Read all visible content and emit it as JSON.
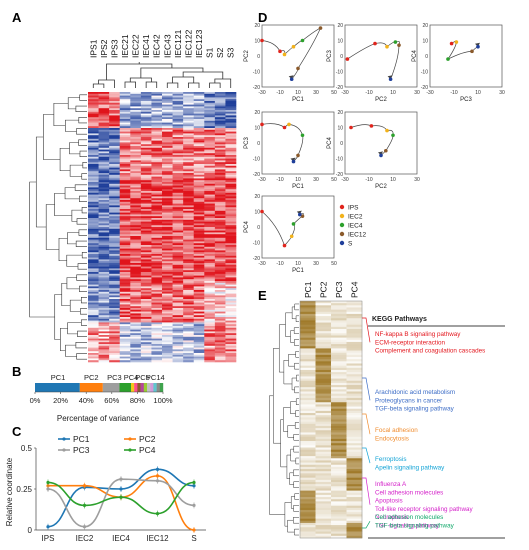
{
  "panel_letters": {
    "a": "A",
    "b": "B",
    "c": "C",
    "d": "D",
    "e": "E"
  },
  "colors": {
    "heat_low": "#1f3f9a",
    "heat_mid": "#ffffff",
    "heat_high": "#e0141c",
    "pc1": "#1f77b4",
    "pc2": "#ff7f0e",
    "pc3": "#9e9e9e",
    "pc4": "#2ca02c",
    "brown": "#a07a2a",
    "kegg_red": "#e3171e",
    "kegg_blue": "#3c6cc6",
    "kegg_orange": "#f08c2e",
    "kegg_cyan": "#12a3d6",
    "kegg_magenta": "#d421c9",
    "kegg_green": "#12a86a"
  },
  "panel_a": {
    "columns": [
      "IPS1",
      "IPS2",
      "IPS3",
      "IEC21",
      "IEC22",
      "IEC41",
      "IEC42",
      "IEC43",
      "IEC121",
      "IEC122",
      "IEC123",
      "S1",
      "S2",
      "S3"
    ]
  },
  "panel_b": {
    "chart_data": {
      "type": "bar",
      "orientation": "horizontal-stacked",
      "categories": [
        "PC1",
        "PC2",
        "PC3",
        "PC4",
        "PC5-PC14"
      ],
      "values": [
        35,
        18,
        13,
        9,
        25
      ],
      "segment_labels": [
        "PC1",
        "PC2",
        "PC3",
        "PC4",
        "PC5",
        "PC14"
      ],
      "ticks": [
        "0%",
        "20%",
        "40%",
        "60%",
        "80%",
        "100%"
      ],
      "xlabel": "Percentage of variance",
      "xlim": [
        0,
        100
      ],
      "tail_colors": [
        "#f4c71d",
        "#ff4f8b",
        "#8e5a2f",
        "#b6469a",
        "#9acd32",
        "#c2c2c2",
        "#d29ad8",
        "#5fc6cf",
        "#8a8a8a",
        "#3fa34d"
      ]
    }
  },
  "panel_c": {
    "chart_data": {
      "type": "line",
      "categories": [
        "IPS",
        "IEC2",
        "IEC4",
        "IEC12",
        "S"
      ],
      "ylabel": "Relative coordinate",
      "ylim": [
        0,
        0.5
      ],
      "yticks": [
        "0",
        "0.25",
        "0.5"
      ],
      "series": [
        {
          "name": "PC1",
          "values": [
            0.02,
            0.26,
            0.25,
            0.37,
            0.27
          ]
        },
        {
          "name": "PC2",
          "values": [
            0.27,
            0.27,
            0.2,
            0.33,
            0.0
          ]
        },
        {
          "name": "PC3",
          "values": [
            0.25,
            0.02,
            0.31,
            0.3,
            0.15
          ]
        },
        {
          "name": "PC4",
          "values": [
            0.29,
            0.15,
            0.2,
            0.1,
            0.29
          ]
        }
      ]
    }
  },
  "panel_d": {
    "legend": [
      "IPS",
      "IEC2",
      "IEC4",
      "IEC12",
      "S"
    ],
    "legend_colors": [
      "#e0241c",
      "#f2b21b",
      "#2ca02c",
      "#8b5a2b",
      "#1f3f9a"
    ],
    "plots": [
      {
        "xlabel": "PC1",
        "ylabel": "PC2",
        "x_ticks": [
          "-30",
          "-10",
          "10",
          "30",
          "50"
        ],
        "y_ticks": [
          "20",
          "10",
          "0",
          "-10",
          "-20"
        ],
        "points": [
          [
            -30,
            10
          ],
          [
            -10,
            3
          ],
          [
            -5,
            1
          ],
          [
            5,
            6
          ],
          [
            15,
            10
          ],
          [
            35,
            18
          ],
          [
            10,
            -8
          ],
          [
            3,
            -15
          ]
        ]
      },
      {
        "xlabel": "PC2",
        "ylabel": "PC3",
        "x_ticks": [
          "-30",
          "-10",
          "10",
          "30"
        ],
        "y_ticks": [
          "20",
          "10",
          "0",
          "-10",
          "-20"
        ],
        "points": [
          [
            -28,
            -2
          ],
          [
            -5,
            8
          ],
          [
            5,
            6
          ],
          [
            12,
            9
          ],
          [
            15,
            7
          ],
          [
            8,
            -15
          ]
        ]
      },
      {
        "xlabel": "PC3",
        "ylabel": "PC4",
        "x_ticks": [
          "-30",
          "-10",
          "10",
          "30"
        ],
        "y_ticks": [
          "20",
          "10",
          "0",
          "-10",
          "-20"
        ],
        "points": [
          [
            -12,
            8
          ],
          [
            -8,
            9
          ],
          [
            -15,
            -2
          ],
          [
            5,
            3
          ],
          [
            10,
            6
          ]
        ]
      },
      {
        "xlabel": "PC1",
        "ylabel": "PC3",
        "x_ticks": [
          "-30",
          "-10",
          "10",
          "30",
          "50"
        ],
        "y_ticks": [
          "20",
          "10",
          "0",
          "-10",
          "-20"
        ],
        "points": [
          [
            -30,
            12
          ],
          [
            -5,
            10
          ],
          [
            0,
            12
          ],
          [
            15,
            5
          ],
          [
            10,
            -8
          ],
          [
            5,
            -12
          ]
        ]
      },
      {
        "xlabel": "PC2",
        "ylabel": "PC4",
        "x_ticks": [
          "-30",
          "-10",
          "10",
          "30"
        ],
        "y_ticks": [
          "20",
          "10",
          "0",
          "-10",
          "-20"
        ],
        "points": [
          [
            -25,
            10
          ],
          [
            -8,
            11
          ],
          [
            5,
            8
          ],
          [
            10,
            5
          ],
          [
            4,
            -5
          ],
          [
            0,
            -8
          ]
        ]
      },
      {
        "xlabel": "PC1",
        "ylabel": "PC4",
        "x_ticks": [
          "-30",
          "-10",
          "10",
          "30",
          "50"
        ],
        "y_ticks": [
          "20",
          "10",
          "0",
          "-10",
          "-20"
        ],
        "points": [
          [
            -30,
            10
          ],
          [
            -5,
            -12
          ],
          [
            3,
            -6
          ],
          [
            5,
            2
          ],
          [
            15,
            7
          ],
          [
            12,
            8
          ]
        ]
      }
    ]
  },
  "panel_e": {
    "columns": [
      "PC1",
      "PC2",
      "PC3",
      "PC4"
    ],
    "header": "KEGG Pathways",
    "groups": [
      {
        "color_key": "kegg_red",
        "items": [
          "NF-kappa B signaling pathway",
          "ECM-receptor interaction",
          "Complement and coagulation cascades"
        ]
      },
      {
        "color_key": "kegg_blue",
        "items": [
          "Arachidonic acid metabolism",
          "Proteoglycans in cancer",
          "TGF-beta signaling pathway"
        ]
      },
      {
        "color_key": "kegg_orange",
        "items": [
          "Focal adhesion",
          "Endocytosis"
        ]
      },
      {
        "color_key": "kegg_cyan",
        "items": [
          "Ferroptosis",
          "Apelin signaling pathway"
        ]
      },
      {
        "color_key": "kegg_magenta",
        "items": [
          "Influenza A",
          "Cell adhesion molecules",
          "Apoptosis",
          "Toll-like receptor signaling pathway",
          "Necroptosis",
          "TNF signaling pathway"
        ]
      },
      {
        "color_key": "kegg_green",
        "items": [
          "Cell adhesion molecules",
          "TGF-beta signaling pathway"
        ]
      }
    ]
  }
}
